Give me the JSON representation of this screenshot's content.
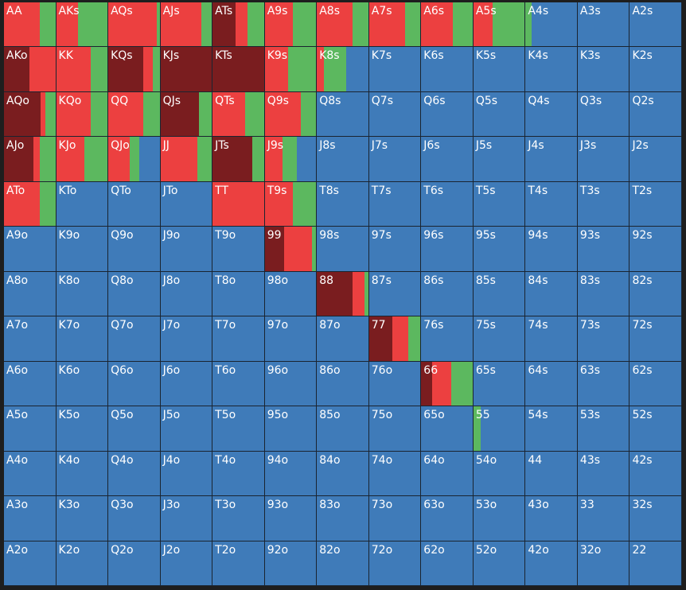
{
  "hands": [
    [
      "AA",
      "AKs",
      "AQs",
      "AJs",
      "ATs",
      "A9s",
      "A8s",
      "A7s",
      "A6s",
      "A5s",
      "A4s",
      "A3s",
      "A2s"
    ],
    [
      "AKo",
      "KK",
      "KQs",
      "KJs",
      "KTs",
      "K9s",
      "K8s",
      "K7s",
      "K6s",
      "K5s",
      "K4s",
      "K3s",
      "K2s"
    ],
    [
      "AQo",
      "KQo",
      "QQ",
      "QJs",
      "QTs",
      "Q9s",
      "Q8s",
      "Q7s",
      "Q6s",
      "Q5s",
      "Q4s",
      "Q3s",
      "Q2s"
    ],
    [
      "AJo",
      "KJo",
      "QJo",
      "JJ",
      "JTs",
      "J9s",
      "J8s",
      "J7s",
      "J6s",
      "J5s",
      "J4s",
      "J3s",
      "J2s"
    ],
    [
      "ATo",
      "KTo",
      "QTo",
      "JTo",
      "TT",
      "T9s",
      "T8s",
      "T7s",
      "T6s",
      "T5s",
      "T4s",
      "T3s",
      "T2s"
    ],
    [
      "A9o",
      "K9o",
      "Q9o",
      "J9o",
      "T9o",
      "99",
      "98s",
      "97s",
      "96s",
      "95s",
      "94s",
      "93s",
      "92s"
    ],
    [
      "A8o",
      "K8o",
      "Q8o",
      "J8o",
      "T8o",
      "98o",
      "88",
      "87s",
      "86s",
      "85s",
      "84s",
      "83s",
      "82s"
    ],
    [
      "A7o",
      "K7o",
      "Q7o",
      "J7o",
      "T7o",
      "97o",
      "87o",
      "77",
      "76s",
      "75s",
      "74s",
      "73s",
      "72s"
    ],
    [
      "A6o",
      "K6o",
      "Q6o",
      "J6o",
      "T6o",
      "96o",
      "86o",
      "76o",
      "66",
      "65s",
      "64s",
      "63s",
      "62s"
    ],
    [
      "A5o",
      "K5o",
      "Q5o",
      "J5o",
      "T5o",
      "95o",
      "85o",
      "75o",
      "65o",
      "55",
      "54s",
      "53s",
      "52s"
    ],
    [
      "A4o",
      "K4o",
      "Q4o",
      "J4o",
      "T4o",
      "94o",
      "84o",
      "74o",
      "64o",
      "54o",
      "44",
      "43s",
      "42s"
    ],
    [
      "A3o",
      "K3o",
      "Q3o",
      "J3o",
      "T3o",
      "93o",
      "83o",
      "73o",
      "63o",
      "53o",
      "43o",
      "33",
      "32s"
    ],
    [
      "A2o",
      "K2o",
      "Q2o",
      "J2o",
      "T2o",
      "92o",
      "82o",
      "72o",
      "62o",
      "52o",
      "42o",
      "32o",
      "22"
    ]
  ],
  "segment_colors": [
    "#7a1d1f",
    "#ec4040",
    "#5cb85f",
    "#3f7bb9"
  ],
  "frequencies": [
    [
      [
        0,
        70,
        30,
        0
      ],
      [
        0,
        42,
        58,
        0
      ],
      [
        0,
        95,
        5,
        0
      ],
      [
        0,
        80,
        20,
        0
      ],
      [
        45,
        23,
        32,
        0
      ],
      [
        0,
        54,
        46,
        0
      ],
      [
        0,
        70,
        30,
        0
      ],
      [
        0,
        70,
        30,
        0
      ],
      [
        0,
        62,
        38,
        0
      ],
      [
        0,
        38,
        62,
        0
      ],
      [
        0,
        0,
        12,
        88
      ],
      [
        0,
        0,
        0,
        100
      ],
      [
        0,
        0,
        0,
        100
      ]
    ],
    [
      [
        50,
        50,
        0,
        0
      ],
      [
        0,
        67,
        33,
        0
      ],
      [
        68,
        18,
        14,
        0
      ],
      [
        100,
        0,
        0,
        0
      ],
      [
        100,
        0,
        0,
        0
      ],
      [
        0,
        45,
        55,
        0
      ],
      [
        0,
        14,
        43,
        43
      ],
      [
        0,
        0,
        0,
        100
      ],
      [
        0,
        0,
        0,
        100
      ],
      [
        0,
        0,
        0,
        100
      ],
      [
        0,
        0,
        0,
        100
      ],
      [
        0,
        0,
        0,
        100
      ],
      [
        0,
        0,
        0,
        100
      ]
    ],
    [
      [
        72,
        8,
        20,
        0
      ],
      [
        0,
        67,
        33,
        0
      ],
      [
        0,
        68,
        32,
        0
      ],
      [
        75,
        0,
        25,
        0
      ],
      [
        0,
        63,
        37,
        0
      ],
      [
        0,
        70,
        30,
        0
      ],
      [
        0,
        0,
        0,
        100
      ],
      [
        0,
        0,
        0,
        100
      ],
      [
        0,
        0,
        0,
        100
      ],
      [
        0,
        0,
        0,
        100
      ],
      [
        0,
        0,
        0,
        100
      ],
      [
        0,
        0,
        0,
        100
      ],
      [
        0,
        0,
        0,
        100
      ]
    ],
    [
      [
        57,
        12,
        31,
        0
      ],
      [
        0,
        55,
        45,
        0
      ],
      [
        0,
        42,
        18,
        40
      ],
      [
        0,
        72,
        28,
        0
      ],
      [
        78,
        0,
        22,
        0
      ],
      [
        0,
        35,
        28,
        37
      ],
      [
        0,
        0,
        0,
        100
      ],
      [
        0,
        0,
        0,
        100
      ],
      [
        0,
        0,
        0,
        100
      ],
      [
        0,
        0,
        0,
        100
      ],
      [
        0,
        0,
        0,
        100
      ],
      [
        0,
        0,
        0,
        100
      ],
      [
        0,
        0,
        0,
        100
      ]
    ],
    [
      [
        0,
        70,
        30,
        0
      ],
      [
        0,
        0,
        0,
        100
      ],
      [
        0,
        0,
        0,
        100
      ],
      [
        0,
        0,
        0,
        100
      ],
      [
        0,
        100,
        0,
        0
      ],
      [
        0,
        55,
        45,
        0
      ],
      [
        0,
        0,
        0,
        100
      ],
      [
        0,
        0,
        0,
        100
      ],
      [
        0,
        0,
        0,
        100
      ],
      [
        0,
        0,
        0,
        100
      ],
      [
        0,
        0,
        0,
        100
      ],
      [
        0,
        0,
        0,
        100
      ],
      [
        0,
        0,
        0,
        100
      ]
    ],
    [
      [
        0,
        0,
        0,
        100
      ],
      [
        0,
        0,
        0,
        100
      ],
      [
        0,
        0,
        0,
        100
      ],
      [
        0,
        0,
        0,
        100
      ],
      [
        0,
        0,
        0,
        100
      ],
      [
        38,
        54,
        8,
        0
      ],
      [
        0,
        0,
        0,
        100
      ],
      [
        0,
        0,
        0,
        100
      ],
      [
        0,
        0,
        0,
        100
      ],
      [
        0,
        0,
        0,
        100
      ],
      [
        0,
        0,
        0,
        100
      ],
      [
        0,
        0,
        0,
        100
      ],
      [
        0,
        0,
        0,
        100
      ]
    ],
    [
      [
        0,
        0,
        0,
        100
      ],
      [
        0,
        0,
        0,
        100
      ],
      [
        0,
        0,
        0,
        100
      ],
      [
        0,
        0,
        0,
        100
      ],
      [
        0,
        0,
        0,
        100
      ],
      [
        0,
        0,
        0,
        100
      ],
      [
        70,
        22,
        8,
        0
      ],
      [
        0,
        0,
        0,
        100
      ],
      [
        0,
        0,
        0,
        100
      ],
      [
        0,
        0,
        0,
        100
      ],
      [
        0,
        0,
        0,
        100
      ],
      [
        0,
        0,
        0,
        100
      ],
      [
        0,
        0,
        0,
        100
      ]
    ],
    [
      [
        0,
        0,
        0,
        100
      ],
      [
        0,
        0,
        0,
        100
      ],
      [
        0,
        0,
        0,
        100
      ],
      [
        0,
        0,
        0,
        100
      ],
      [
        0,
        0,
        0,
        100
      ],
      [
        0,
        0,
        0,
        100
      ],
      [
        0,
        0,
        0,
        100
      ],
      [
        45,
        32,
        23,
        0
      ],
      [
        0,
        0,
        0,
        100
      ],
      [
        0,
        0,
        0,
        100
      ],
      [
        0,
        0,
        0,
        100
      ],
      [
        0,
        0,
        0,
        100
      ],
      [
        0,
        0,
        0,
        100
      ]
    ],
    [
      [
        0,
        0,
        0,
        100
      ],
      [
        0,
        0,
        0,
        100
      ],
      [
        0,
        0,
        0,
        100
      ],
      [
        0,
        0,
        0,
        100
      ],
      [
        0,
        0,
        0,
        100
      ],
      [
        0,
        0,
        0,
        100
      ],
      [
        0,
        0,
        0,
        100
      ],
      [
        0,
        0,
        0,
        100
      ],
      [
        22,
        37,
        41,
        0
      ],
      [
        0,
        0,
        0,
        100
      ],
      [
        0,
        0,
        0,
        100
      ],
      [
        0,
        0,
        0,
        100
      ],
      [
        0,
        0,
        0,
        100
      ]
    ],
    [
      [
        0,
        0,
        0,
        100
      ],
      [
        0,
        0,
        0,
        100
      ],
      [
        0,
        0,
        0,
        100
      ],
      [
        0,
        0,
        0,
        100
      ],
      [
        0,
        0,
        0,
        100
      ],
      [
        0,
        0,
        0,
        100
      ],
      [
        0,
        0,
        0,
        100
      ],
      [
        0,
        0,
        0,
        100
      ],
      [
        0,
        0,
        0,
        100
      ],
      [
        0,
        0,
        14,
        86
      ],
      [
        0,
        0,
        0,
        100
      ],
      [
        0,
        0,
        0,
        100
      ],
      [
        0,
        0,
        0,
        100
      ]
    ],
    [
      [
        0,
        0,
        0,
        100
      ],
      [
        0,
        0,
        0,
        100
      ],
      [
        0,
        0,
        0,
        100
      ],
      [
        0,
        0,
        0,
        100
      ],
      [
        0,
        0,
        0,
        100
      ],
      [
        0,
        0,
        0,
        100
      ],
      [
        0,
        0,
        0,
        100
      ],
      [
        0,
        0,
        0,
        100
      ],
      [
        0,
        0,
        0,
        100
      ],
      [
        0,
        0,
        0,
        100
      ],
      [
        0,
        0,
        0,
        100
      ],
      [
        0,
        0,
        0,
        100
      ],
      [
        0,
        0,
        0,
        100
      ]
    ],
    [
      [
        0,
        0,
        0,
        100
      ],
      [
        0,
        0,
        0,
        100
      ],
      [
        0,
        0,
        0,
        100
      ],
      [
        0,
        0,
        0,
        100
      ],
      [
        0,
        0,
        0,
        100
      ],
      [
        0,
        0,
        0,
        100
      ],
      [
        0,
        0,
        0,
        100
      ],
      [
        0,
        0,
        0,
        100
      ],
      [
        0,
        0,
        0,
        100
      ],
      [
        0,
        0,
        0,
        100
      ],
      [
        0,
        0,
        0,
        100
      ],
      [
        0,
        0,
        0,
        100
      ],
      [
        0,
        0,
        0,
        100
      ]
    ],
    [
      [
        0,
        0,
        0,
        100
      ],
      [
        0,
        0,
        0,
        100
      ],
      [
        0,
        0,
        0,
        100
      ],
      [
        0,
        0,
        0,
        100
      ],
      [
        0,
        0,
        0,
        100
      ],
      [
        0,
        0,
        0,
        100
      ],
      [
        0,
        0,
        0,
        100
      ],
      [
        0,
        0,
        0,
        100
      ],
      [
        0,
        0,
        0,
        100
      ],
      [
        0,
        0,
        0,
        100
      ],
      [
        0,
        0,
        0,
        100
      ],
      [
        0,
        0,
        0,
        100
      ],
      [
        0,
        0,
        0,
        100
      ]
    ]
  ]
}
